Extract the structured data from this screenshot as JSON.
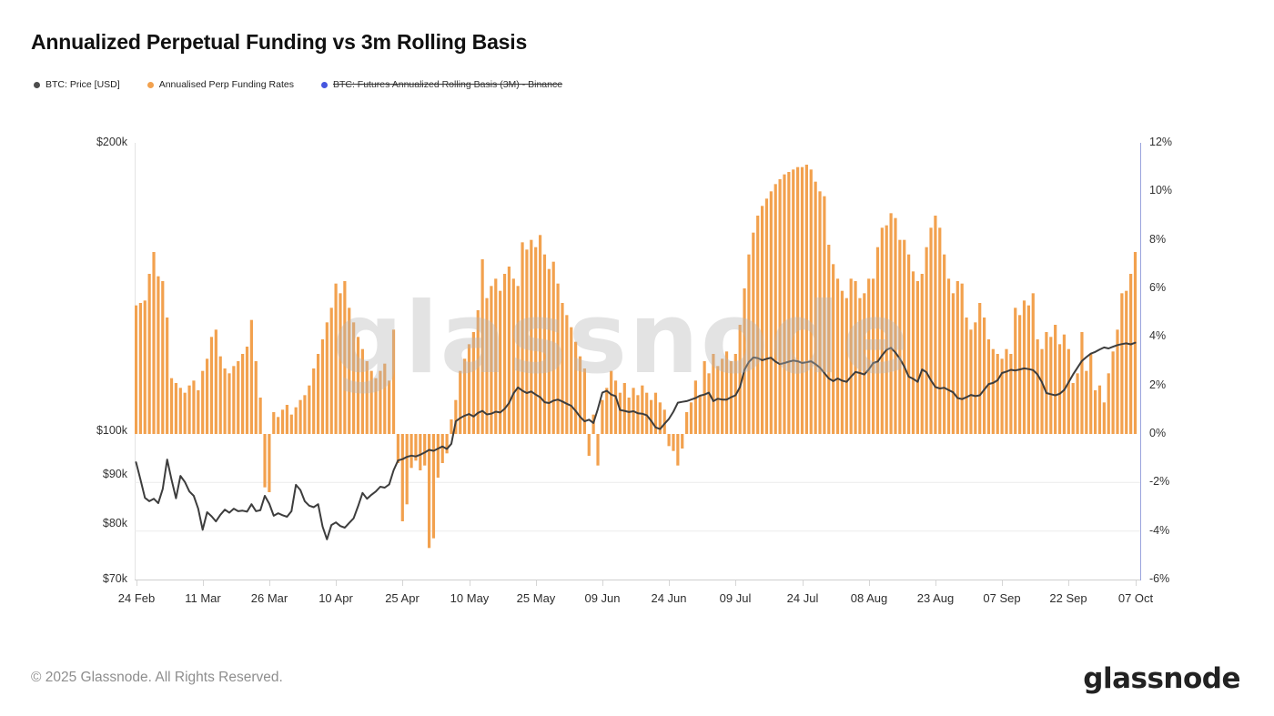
{
  "title": "Annualized Perpetual Funding vs 3m Rolling Basis",
  "watermark": "glassnode",
  "legend": [
    {
      "label": "BTC: Price [USD]",
      "color": "#4d4d4d",
      "disabled": false
    },
    {
      "label": "Annualised Perp Funding Rates",
      "color": "#f2a14e",
      "disabled": false
    },
    {
      "label": "BTC: Futures Annualized Rolling Basis (3M) - Binance",
      "color": "#4656df",
      "disabled": true
    }
  ],
  "footer": {
    "copyright": "© 2025 Glassnode. All Rights Reserved.",
    "logo": "glassnode"
  },
  "chart_data": {
    "type": "bar+line",
    "title": "Annualized Perpetual Funding vs 3m Rolling Basis",
    "x_axis": {
      "tick_labels": [
        "24 Feb",
        "11 Mar",
        "26 Mar",
        "10 Apr",
        "25 Apr",
        "10 May",
        "25 May",
        "09 Jun",
        "24 Jun",
        "09 Jul",
        "24 Jul",
        "08 Aug",
        "23 Aug",
        "07 Sep",
        "22 Sep",
        "07 Oct"
      ],
      "tick_days": [
        0,
        15,
        30,
        45,
        60,
        75,
        90,
        105,
        120,
        135,
        150,
        165,
        180,
        195,
        210,
        225
      ],
      "days_total": 225
    },
    "left_axis": {
      "scale": "log",
      "unit": "USD",
      "min_k": 70,
      "max_k": 200,
      "ticks": [
        {
          "label": "$200k",
          "value_k": 200
        },
        {
          "label": "$100k",
          "value_k": 100
        },
        {
          "label": "$90k",
          "value_k": 90
        },
        {
          "label": "$80k",
          "value_k": 80
        },
        {
          "label": "$70k",
          "value_k": 70
        }
      ]
    },
    "right_axis": {
      "scale": "linear",
      "unit": "%",
      "min": -6,
      "max": 12,
      "ticks": [
        {
          "label": "12%",
          "value": 12
        },
        {
          "label": "10%",
          "value": 10
        },
        {
          "label": "8%",
          "value": 8
        },
        {
          "label": "6%",
          "value": 6
        },
        {
          "label": "4%",
          "value": 4
        },
        {
          "label": "2%",
          "value": 2
        },
        {
          "label": "0%",
          "value": 0
        },
        {
          "label": "-2%",
          "value": -2
        },
        {
          "label": "-4%",
          "value": -4
        },
        {
          "label": "-6%",
          "value": -6
        }
      ],
      "visible_gridlines_pct": [
        -2,
        -4
      ]
    },
    "series": [
      {
        "name": "BTC: Price [USD]",
        "type": "line",
        "axis": "left",
        "color": "#3d3d3d",
        "values_usd_k": [
          92.8,
          89.0,
          85.2,
          84.5,
          85.0,
          84.1,
          87.0,
          93.4,
          89.0,
          85.1,
          89.8,
          88.5,
          86.5,
          85.6,
          83.0,
          78.9,
          82.3,
          81.5,
          80.5,
          81.8,
          82.8,
          82.2,
          83.0,
          82.5,
          82.6,
          82.4,
          83.9,
          82.5,
          82.7,
          85.6,
          84.0,
          81.6,
          82.1,
          81.7,
          81.4,
          82.5,
          87.9,
          86.8,
          84.5,
          83.6,
          83.3,
          83.9,
          79.5,
          77.1,
          79.8,
          80.3,
          79.6,
          79.3,
          80.2,
          81.1,
          83.5,
          86.2,
          85.0,
          85.8,
          86.5,
          87.5,
          87.3,
          88.0,
          91.0,
          93.2,
          93.5,
          94.0,
          94.3,
          94.1,
          94.5,
          95.0,
          95.6,
          95.4,
          95.9,
          96.4,
          95.8,
          97.0,
          102.4,
          103.2,
          103.8,
          104.2,
          103.6,
          104.5,
          105.0,
          104.1,
          104.3,
          104.8,
          104.6,
          105.5,
          107.0,
          109.5,
          111.1,
          110.2,
          109.6,
          110.0,
          109.2,
          108.5,
          107.2,
          107.0,
          107.6,
          107.9,
          107.4,
          106.8,
          106.3,
          105.0,
          103.5,
          102.4,
          102.8,
          102.0,
          105.5,
          109.7,
          110.2,
          109.2,
          108.8,
          105.2,
          105.0,
          104.7,
          104.9,
          104.4,
          104.3,
          103.9,
          102.5,
          100.9,
          100.5,
          101.8,
          103.0,
          104.8,
          107.1,
          107.3,
          107.5,
          107.9,
          108.3,
          108.9,
          109.2,
          109.7,
          107.5,
          108.1,
          107.9,
          107.9,
          108.5,
          109.0,
          111.2,
          115.9,
          118.1,
          119.4,
          119.2,
          118.6,
          119.0,
          119.3,
          118.2,
          117.5,
          117.8,
          118.2,
          118.5,
          118.3,
          117.8,
          118.0,
          118.3,
          117.5,
          116.5,
          115.0,
          113.5,
          112.8,
          113.5,
          112.9,
          112.6,
          114.0,
          115.3,
          115.0,
          114.6,
          116.0,
          117.8,
          118.2,
          120.0,
          121.6,
          122.2,
          120.8,
          119.0,
          116.8,
          114.0,
          113.4,
          112.6,
          116.0,
          115.2,
          113.0,
          111.2,
          110.8,
          111.0,
          110.4,
          109.8,
          108.3,
          108.0,
          108.5,
          109.1,
          108.8,
          109.0,
          110.5,
          112.0,
          112.3,
          113.0,
          115.0,
          115.4,
          115.9,
          115.7,
          116.0,
          116.3,
          116.1,
          115.8,
          114.6,
          112.5,
          109.6,
          109.3,
          109.0,
          109.4,
          110.4,
          112.5,
          114.6,
          116.5,
          118.4,
          119.5,
          120.5,
          121.0,
          121.7,
          122.3,
          122.0,
          122.5,
          123.0,
          123.3,
          123.5,
          123.2,
          123.7
        ]
      },
      {
        "name": "Annualised Perp Funding Rates",
        "type": "bar",
        "axis": "right",
        "color": "#f2a14e",
        "values_pct": [
          5.3,
          5.4,
          5.5,
          6.6,
          7.5,
          6.5,
          6.3,
          4.8,
          2.3,
          2.1,
          1.9,
          1.7,
          2.0,
          2.2,
          1.8,
          2.6,
          3.1,
          4.0,
          4.3,
          3.2,
          2.7,
          2.5,
          2.8,
          3.0,
          3.3,
          3.6,
          4.7,
          3.0,
          1.5,
          -2.2,
          -2.4,
          0.9,
          0.7,
          1.0,
          1.2,
          0.8,
          1.1,
          1.4,
          1.6,
          2.0,
          2.7,
          3.3,
          3.9,
          4.6,
          5.2,
          6.2,
          5.8,
          6.3,
          5.2,
          4.6,
          4.0,
          3.5,
          3.0,
          2.6,
          2.3,
          2.6,
          2.9,
          2.2,
          4.3,
          -1.2,
          -3.6,
          -2.9,
          -1.4,
          -1.1,
          -1.5,
          -1.3,
          -4.7,
          -4.3,
          -1.8,
          -1.2,
          -0.8,
          0.6,
          1.4,
          2.6,
          3.1,
          3.7,
          4.2,
          5.1,
          7.2,
          5.6,
          6.1,
          6.4,
          5.9,
          6.6,
          6.9,
          6.4,
          6.1,
          7.9,
          7.6,
          8.0,
          7.7,
          8.2,
          7.4,
          6.8,
          7.1,
          6.2,
          5.4,
          4.9,
          4.4,
          3.8,
          3.2,
          2.7,
          -0.9,
          0.8,
          -1.3,
          1.4,
          1.9,
          2.6,
          2.2,
          1.7,
          2.1,
          1.5,
          1.9,
          1.6,
          2.0,
          1.7,
          1.4,
          1.7,
          1.3,
          1.0,
          -0.5,
          -0.7,
          -1.3,
          -0.6,
          0.9,
          1.3,
          2.2,
          1.6,
          3.0,
          2.5,
          3.3,
          2.8,
          3.1,
          3.4,
          3.0,
          3.3,
          4.5,
          6.0,
          7.4,
          8.3,
          9.0,
          9.4,
          9.7,
          10.0,
          10.3,
          10.5,
          10.7,
          10.8,
          10.9,
          11.0,
          11.0,
          11.1,
          10.9,
          10.4,
          10.0,
          9.8,
          7.8,
          7.0,
          6.4,
          5.9,
          5.6,
          6.4,
          6.3,
          5.6,
          5.8,
          6.4,
          6.4,
          7.7,
          8.5,
          8.6,
          9.1,
          8.9,
          8.0,
          8.0,
          7.4,
          6.7,
          6.3,
          6.6,
          7.7,
          8.5,
          9.0,
          8.5,
          7.4,
          6.4,
          5.8,
          6.3,
          6.2,
          4.8,
          4.3,
          4.6,
          5.4,
          4.8,
          3.9,
          3.5,
          3.3,
          3.1,
          3.5,
          3.3,
          5.2,
          4.9,
          5.5,
          5.3,
          5.8,
          3.9,
          3.5,
          4.2,
          4.0,
          4.5,
          3.7,
          4.1,
          3.5,
          2.1,
          2.5,
          4.2,
          2.6,
          3.3,
          1.8,
          2.0,
          1.3,
          2.5,
          3.4,
          4.3,
          5.8,
          5.9,
          6.6,
          7.5
        ]
      },
      {
        "name": "BTC: Futures Annualized Rolling Basis (3M) - Binance",
        "type": "line",
        "axis": "right",
        "color": "#4656df",
        "hidden": true,
        "values_pct": []
      }
    ]
  }
}
